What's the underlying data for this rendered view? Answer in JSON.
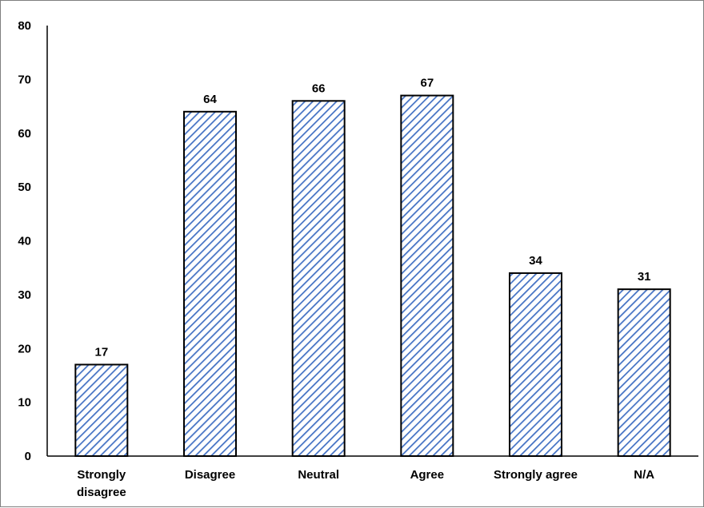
{
  "chart_data": {
    "type": "bar",
    "categories": [
      "Strongly disagree",
      "Disagree",
      "Neutral",
      "Agree",
      "Strongly agree",
      "N/A"
    ],
    "category_label_lines": [
      [
        "Strongly",
        "disagree"
      ],
      [
        "Disagree"
      ],
      [
        "Neutral"
      ],
      [
        "Agree"
      ],
      [
        "Strongly agree"
      ],
      [
        "N/A"
      ]
    ],
    "values": [
      17,
      64,
      66,
      67,
      34,
      31
    ],
    "data_labels": [
      "17",
      "64",
      "66",
      "67",
      "34",
      "31"
    ],
    "title": "",
    "xlabel": "",
    "ylabel": "",
    "ylim": [
      0,
      80
    ],
    "y_ticks": [
      0,
      10,
      20,
      30,
      40,
      50,
      60,
      70,
      80
    ],
    "grid": false,
    "legend": "none",
    "bar_fill": "hatched",
    "colors": {
      "hatch": "#4472c4",
      "bar_border": "#000000",
      "axis": "#000000"
    }
  }
}
